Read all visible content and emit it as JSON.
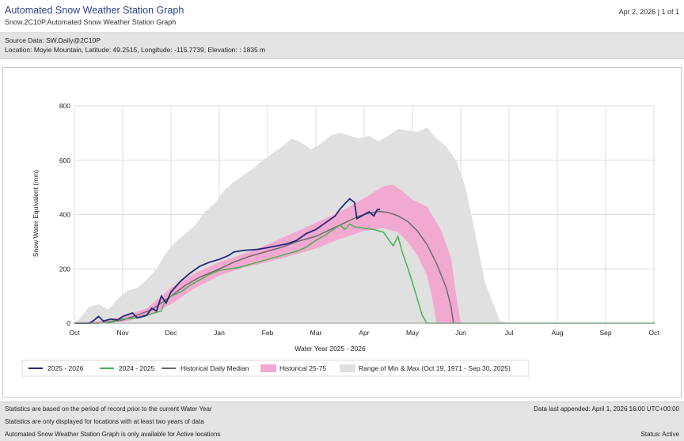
{
  "header": {
    "title": "Automated Snow Weather Station Graph",
    "subtitle": "Snow.2C10P.Automated Snow Weather Station Graph",
    "page_info": "Apr 2, 2026 | 1 of 1"
  },
  "source": {
    "data_line": "Source Data: SW.Daily@2C10P",
    "location_line": "Location: Moyie Mountain, Latitude: 49.2515, Longitude: -115.7739, Elevation: : 1835 m"
  },
  "footer": {
    "note1": "Statistics are based on the period of record prior to the current Water Year",
    "note2": "Statistics are only displayed for locations with at least two years of data",
    "note3": "Automated Snow Weather Station Graph is only available for Active locations",
    "last_appended": "Data last appended: April 1, 2026 16:00 UTC+00:00",
    "status": "Status: Active"
  },
  "colors": {
    "current": "#1f2a7a",
    "previous": "#4caf50",
    "median": "#6b6b6b",
    "band_25_75": "#f2a9cf",
    "band_minmax": "#e0e0e0"
  },
  "chart_data": {
    "type": "area",
    "xlabel": "Water Year 2025 - 2026",
    "ylabel": "Snow Water Equivalent (mm)",
    "ylim": [
      0,
      800
    ],
    "yticks": [
      0,
      200,
      400,
      600,
      800
    ],
    "xticks": [
      "Oct",
      "Nov",
      "Dec",
      "Jan",
      "Feb",
      "Mar",
      "Apr",
      "May",
      "Jun",
      "Jul",
      "Aug",
      "Sep",
      "Oct"
    ],
    "x_unit": "month index from Oct 1",
    "grid": true,
    "legend_position": "bottom",
    "series": [
      {
        "name": "2025 - 2026",
        "kind": "line",
        "points": [
          [
            0,
            0
          ],
          [
            0.3,
            0
          ],
          [
            0.4,
            10
          ],
          [
            0.5,
            25
          ],
          [
            0.6,
            8
          ],
          [
            0.75,
            15
          ],
          [
            0.9,
            12
          ],
          [
            1.0,
            25
          ],
          [
            1.2,
            38
          ],
          [
            1.3,
            20
          ],
          [
            1.5,
            30
          ],
          [
            1.6,
            55
          ],
          [
            1.7,
            45
          ],
          [
            1.8,
            100
          ],
          [
            1.9,
            75
          ],
          [
            2.0,
            115
          ],
          [
            2.2,
            155
          ],
          [
            2.4,
            185
          ],
          [
            2.6,
            210
          ],
          [
            2.8,
            225
          ],
          [
            3.0,
            235
          ],
          [
            3.2,
            250
          ],
          [
            3.3,
            262
          ],
          [
            3.5,
            268
          ],
          [
            3.8,
            272
          ],
          [
            4.0,
            278
          ],
          [
            4.2,
            285
          ],
          [
            4.4,
            292
          ],
          [
            4.6,
            305
          ],
          [
            4.8,
            330
          ],
          [
            5.0,
            345
          ],
          [
            5.2,
            370
          ],
          [
            5.4,
            395
          ],
          [
            5.5,
            420
          ],
          [
            5.6,
            440
          ],
          [
            5.7,
            458
          ],
          [
            5.8,
            445
          ],
          [
            5.85,
            385
          ],
          [
            6.0,
            400
          ],
          [
            6.1,
            410
          ],
          [
            6.2,
            395
          ],
          [
            6.27,
            418
          ],
          [
            6.33,
            420
          ]
        ]
      },
      {
        "name": "2024 - 2025",
        "kind": "line",
        "points": [
          [
            0,
            0
          ],
          [
            0.5,
            0
          ],
          [
            0.8,
            5
          ],
          [
            1.0,
            15
          ],
          [
            1.2,
            18
          ],
          [
            1.4,
            22
          ],
          [
            1.6,
            35
          ],
          [
            1.8,
            45
          ],
          [
            1.85,
            70
          ],
          [
            2.0,
            100
          ],
          [
            2.2,
            115
          ],
          [
            2.4,
            140
          ],
          [
            2.6,
            160
          ],
          [
            2.8,
            180
          ],
          [
            3.0,
            195
          ],
          [
            3.2,
            200
          ],
          [
            3.4,
            205
          ],
          [
            3.6,
            215
          ],
          [
            3.8,
            225
          ],
          [
            4.0,
            235
          ],
          [
            4.2,
            245
          ],
          [
            4.4,
            255
          ],
          [
            4.6,
            265
          ],
          [
            4.8,
            280
          ],
          [
            5.0,
            305
          ],
          [
            5.2,
            325
          ],
          [
            5.4,
            350
          ],
          [
            5.5,
            362
          ],
          [
            5.6,
            345
          ],
          [
            5.7,
            365
          ],
          [
            5.8,
            355
          ],
          [
            6.0,
            350
          ],
          [
            6.2,
            345
          ],
          [
            6.4,
            335
          ],
          [
            6.5,
            310
          ],
          [
            6.6,
            285
          ],
          [
            6.7,
            320
          ],
          [
            6.8,
            255
          ],
          [
            6.9,
            205
          ],
          [
            7.0,
            150
          ],
          [
            7.1,
            90
          ],
          [
            7.2,
            30
          ],
          [
            7.3,
            0
          ],
          [
            12.0,
            0
          ],
          [
            12.0,
            5
          ]
        ]
      },
      {
        "name": "Historical Daily Median",
        "kind": "line",
        "points": [
          [
            0,
            0
          ],
          [
            0.5,
            0
          ],
          [
            1.0,
            12
          ],
          [
            1.3,
            30
          ],
          [
            1.6,
            50
          ],
          [
            2.0,
            100
          ],
          [
            2.3,
            140
          ],
          [
            2.6,
            170
          ],
          [
            3.0,
            200
          ],
          [
            3.3,
            225
          ],
          [
            3.6,
            245
          ],
          [
            4.0,
            265
          ],
          [
            4.3,
            280
          ],
          [
            4.6,
            300
          ],
          [
            5.0,
            320
          ],
          [
            5.3,
            345
          ],
          [
            5.6,
            370
          ],
          [
            5.9,
            395
          ],
          [
            6.1,
            405
          ],
          [
            6.3,
            412
          ],
          [
            6.5,
            408
          ],
          [
            6.7,
            395
          ],
          [
            6.9,
            375
          ],
          [
            7.1,
            340
          ],
          [
            7.3,
            290
          ],
          [
            7.5,
            220
          ],
          [
            7.7,
            130
          ],
          [
            7.8,
            60
          ],
          [
            7.85,
            0
          ]
        ]
      },
      {
        "name": "Historical 25-75",
        "kind": "band",
        "lower": [
          [
            0,
            0
          ],
          [
            0.5,
            0
          ],
          [
            1.0,
            5
          ],
          [
            1.5,
            25
          ],
          [
            2.0,
            70
          ],
          [
            2.5,
            130
          ],
          [
            3.0,
            175
          ],
          [
            3.5,
            205
          ],
          [
            4.0,
            225
          ],
          [
            4.5,
            250
          ],
          [
            5.0,
            275
          ],
          [
            5.5,
            310
          ],
          [
            6.0,
            340
          ],
          [
            6.4,
            350
          ],
          [
            6.7,
            335
          ],
          [
            6.9,
            300
          ],
          [
            7.1,
            250
          ],
          [
            7.3,
            175
          ],
          [
            7.4,
            100
          ],
          [
            7.5,
            0
          ]
        ],
        "upper": [
          [
            0,
            0
          ],
          [
            0.5,
            8
          ],
          [
            1.0,
            25
          ],
          [
            1.5,
            55
          ],
          [
            2.0,
            130
          ],
          [
            2.5,
            185
          ],
          [
            3.0,
            225
          ],
          [
            3.5,
            255
          ],
          [
            4.0,
            290
          ],
          [
            4.5,
            330
          ],
          [
            5.0,
            370
          ],
          [
            5.5,
            410
          ],
          [
            6.0,
            460
          ],
          [
            6.4,
            505
          ],
          [
            6.6,
            510
          ],
          [
            6.8,
            485
          ],
          [
            7.0,
            455
          ],
          [
            7.3,
            430
          ],
          [
            7.6,
            340
          ],
          [
            7.8,
            240
          ],
          [
            7.9,
            110
          ],
          [
            8.0,
            0
          ]
        ]
      },
      {
        "name": "Range of Min & Max (Oct 19, 1971 - Sep 30, 2025)",
        "kind": "band",
        "lower": [
          [
            0,
            0
          ],
          [
            12.0,
            0
          ]
        ],
        "upper": [
          [
            0,
            0
          ],
          [
            0.1,
            15
          ],
          [
            0.3,
            60
          ],
          [
            0.5,
            70
          ],
          [
            0.7,
            50
          ],
          [
            0.9,
            90
          ],
          [
            1.1,
            120
          ],
          [
            1.3,
            130
          ],
          [
            1.5,
            160
          ],
          [
            1.7,
            200
          ],
          [
            1.9,
            260
          ],
          [
            2.1,
            300
          ],
          [
            2.3,
            330
          ],
          [
            2.5,
            360
          ],
          [
            2.7,
            410
          ],
          [
            2.9,
            440
          ],
          [
            3.1,
            490
          ],
          [
            3.3,
            520
          ],
          [
            3.5,
            545
          ],
          [
            3.7,
            570
          ],
          [
            3.9,
            600
          ],
          [
            4.1,
            625
          ],
          [
            4.3,
            650
          ],
          [
            4.5,
            680
          ],
          [
            4.7,
            665
          ],
          [
            4.9,
            640
          ],
          [
            5.1,
            660
          ],
          [
            5.3,
            690
          ],
          [
            5.5,
            700
          ],
          [
            5.7,
            690
          ],
          [
            5.9,
            680
          ],
          [
            6.1,
            690
          ],
          [
            6.3,
            670
          ],
          [
            6.5,
            690
          ],
          [
            6.7,
            715
          ],
          [
            6.9,
            710
          ],
          [
            7.1,
            705
          ],
          [
            7.3,
            720
          ],
          [
            7.5,
            680
          ],
          [
            7.7,
            650
          ],
          [
            7.9,
            600
          ],
          [
            8.1,
            500
          ],
          [
            8.3,
            330
          ],
          [
            8.5,
            150
          ],
          [
            8.7,
            60
          ],
          [
            8.8,
            10
          ],
          [
            9.0,
            0
          ],
          [
            12.0,
            0
          ]
        ]
      }
    ]
  }
}
